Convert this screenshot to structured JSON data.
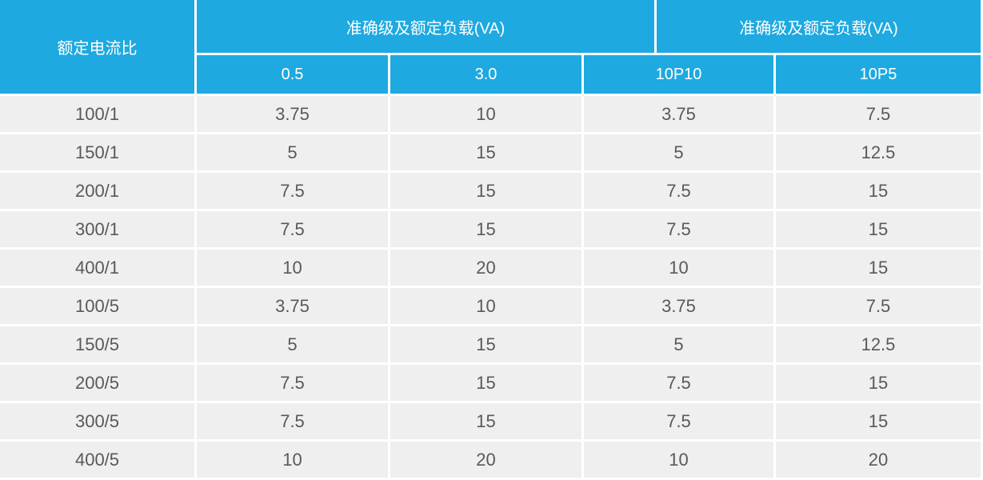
{
  "colors": {
    "header_bg": "#1EA9E0",
    "header_text": "#FFFFFF",
    "row_bg": "#EFEFEF",
    "body_text": "#595959",
    "gutter": "#FFFFFF"
  },
  "table": {
    "corner_header": "额定电流比",
    "group_header_left": "准确级及额定负载(VA)",
    "group_header_right": "准确级及额定负载(VA)",
    "sub_headers": [
      "0.5",
      "3.0",
      "10P10",
      "10P5"
    ],
    "rows": [
      {
        "ratio": "100/1",
        "values": [
          "3.75",
          "10",
          "3.75",
          "7.5"
        ]
      },
      {
        "ratio": "150/1",
        "values": [
          "5",
          "15",
          "5",
          "12.5"
        ]
      },
      {
        "ratio": "200/1",
        "values": [
          "7.5",
          "15",
          "7.5",
          "15"
        ]
      },
      {
        "ratio": "300/1",
        "values": [
          "7.5",
          "15",
          "7.5",
          "15"
        ]
      },
      {
        "ratio": "400/1",
        "values": [
          "10",
          "20",
          "10",
          "15"
        ]
      },
      {
        "ratio": "100/5",
        "values": [
          "3.75",
          "10",
          "3.75",
          "7.5"
        ]
      },
      {
        "ratio": "150/5",
        "values": [
          "5",
          "15",
          "5",
          "12.5"
        ]
      },
      {
        "ratio": "200/5",
        "values": [
          "7.5",
          "15",
          "7.5",
          "15"
        ]
      },
      {
        "ratio": "300/5",
        "values": [
          "7.5",
          "15",
          "7.5",
          "15"
        ]
      },
      {
        "ratio": "400/5",
        "values": [
          "10",
          "20",
          "10",
          "20"
        ]
      }
    ]
  },
  "chart_data": {
    "type": "table",
    "title": "",
    "corner_header": "额定电流比",
    "column_groups": [
      {
        "label": "准确级及额定负载(VA)",
        "spans": [
          "0.5",
          "3.0"
        ]
      },
      {
        "label": "准确级及额定负载(VA)",
        "spans": [
          "10P10",
          "10P5"
        ]
      }
    ],
    "columns": [
      "额定电流比",
      "0.5",
      "3.0",
      "10P10",
      "10P5"
    ],
    "rows": [
      [
        "100/1",
        3.75,
        10,
        3.75,
        7.5
      ],
      [
        "150/1",
        5,
        15,
        5,
        12.5
      ],
      [
        "200/1",
        7.5,
        15,
        7.5,
        15
      ],
      [
        "300/1",
        7.5,
        15,
        7.5,
        15
      ],
      [
        "400/1",
        10,
        20,
        10,
        15
      ],
      [
        "100/5",
        3.75,
        10,
        3.75,
        7.5
      ],
      [
        "150/5",
        5,
        15,
        5,
        12.5
      ],
      [
        "200/5",
        7.5,
        15,
        7.5,
        15
      ],
      [
        "300/5",
        7.5,
        15,
        7.5,
        15
      ],
      [
        "400/5",
        10,
        20,
        10,
        20
      ]
    ]
  }
}
